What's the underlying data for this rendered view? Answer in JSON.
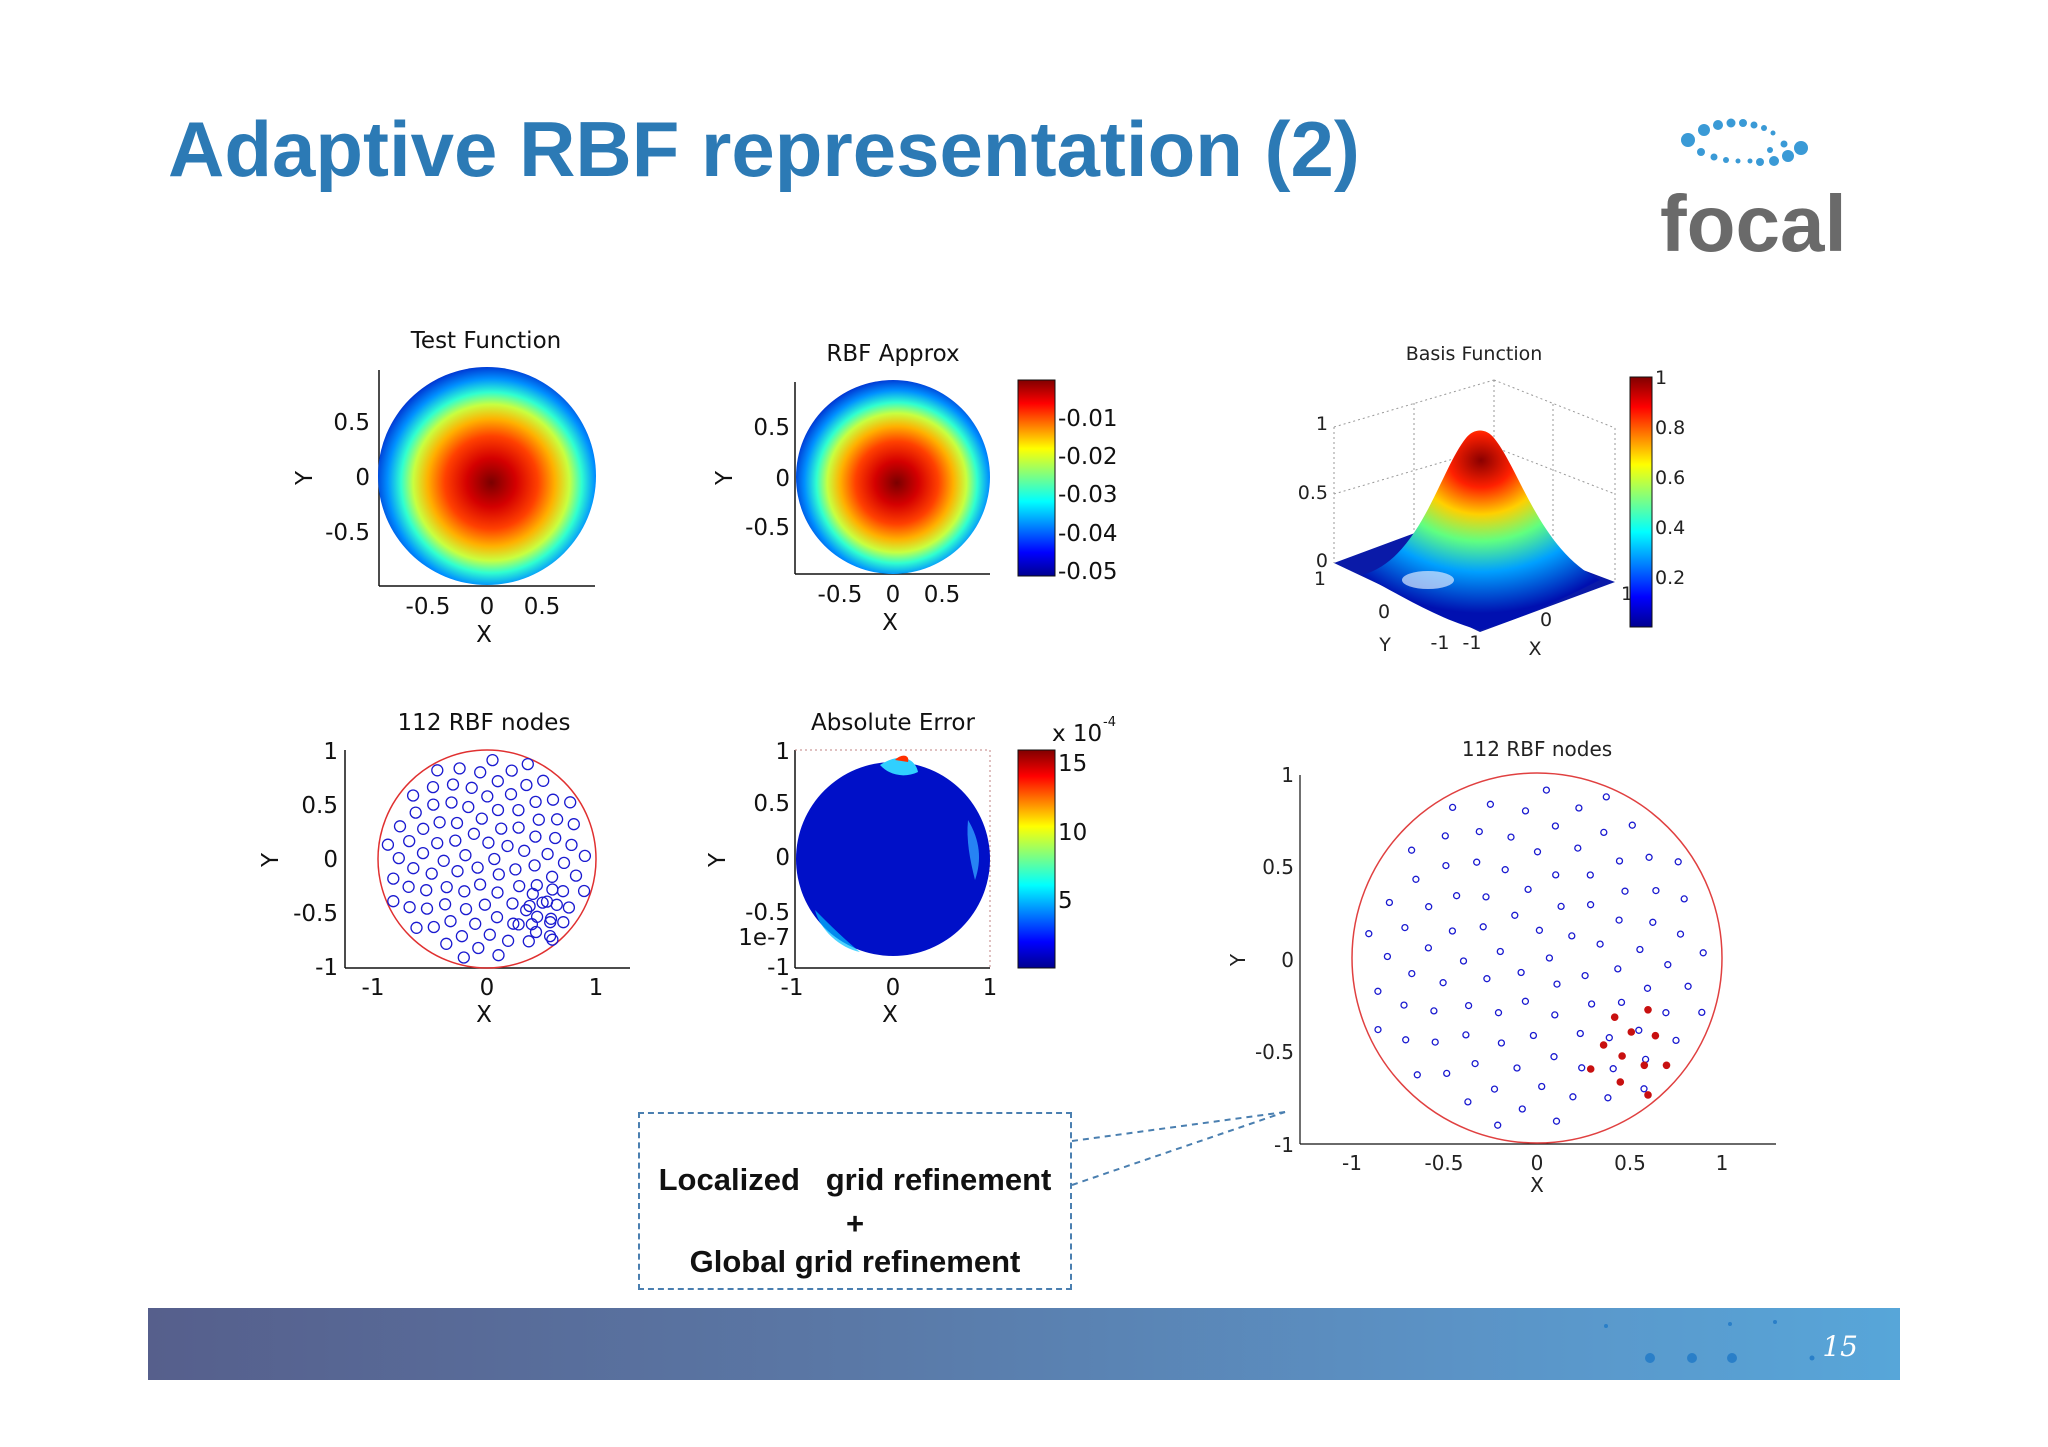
{
  "slide": {
    "title": "Adaptive RBF representation (2)",
    "logo_text": "focal",
    "page_number": "15"
  },
  "callout": {
    "line1": "Localized   grid refinement",
    "line2": "+",
    "line3": "Global grid refinement"
  },
  "colors": {
    "title": "#2c7ab5",
    "nodes": "#1a1ad0",
    "refined_nodes": "#c81010",
    "boundary": "#e03030",
    "footer_start": "#565f8c",
    "footer_end": "#57a6d9"
  },
  "chart_data": [
    {
      "type": "heatmap",
      "title": "Test Function",
      "xlabel": "X",
      "ylabel": "Y",
      "xticks": [
        "-0.5",
        "0",
        "0.5"
      ],
      "yticks": [
        "0.5",
        "0",
        "-0.5"
      ],
      "domain": "unit disk",
      "colormap": "jet"
    },
    {
      "type": "heatmap",
      "title": "RBF Approx",
      "xlabel": "X",
      "ylabel": "Y",
      "xticks": [
        "-0.5",
        "0",
        "0.5"
      ],
      "yticks": [
        "0.5",
        "0",
        "-0.5"
      ],
      "colorbar_ticks": [
        "-0.01",
        "-0.02",
        "-0.03",
        "-0.04",
        "-0.05"
      ],
      "colormap": "jet"
    },
    {
      "type": "surface",
      "title": "Basis Function",
      "xlabel": "X",
      "ylabel": "Y",
      "zticks": [
        "1",
        "0.5",
        "0"
      ],
      "x_ticks": [
        "-1",
        "0",
        "1"
      ],
      "y_ticks": [
        "1",
        "0",
        "-1"
      ],
      "colorbar_ticks": [
        "1",
        "0.8",
        "0.6",
        "0.4",
        "0.2"
      ],
      "colormap": "jet"
    },
    {
      "type": "scatter",
      "title": "112 RBF nodes",
      "xlabel": "X",
      "ylabel": "Y",
      "xticks": [
        "-1",
        "0",
        "1"
      ],
      "yticks": [
        "1",
        "0.5",
        "0",
        "-0.5",
        "-1"
      ],
      "xlim": [
        -1,
        1
      ],
      "ylim": [
        -1,
        1
      ],
      "node_count": 112,
      "marker": "circle"
    },
    {
      "type": "heatmap",
      "title": "Absolute Error",
      "xlabel": "X",
      "ylabel": "Y",
      "xticks": [
        "-1",
        "0",
        "1"
      ],
      "yticks": [
        "1",
        "0.5",
        "0",
        "-0.5",
        "-1"
      ],
      "extra_label": "1e-7",
      "colorbar_label": "x 10",
      "colorbar_exponent": "-4",
      "colorbar_ticks": [
        "15",
        "10",
        "5"
      ],
      "colormap": "jet"
    },
    {
      "type": "scatter",
      "title": "112 RBF nodes",
      "xlabel": "X",
      "ylabel": "Y",
      "xticks": [
        "-1",
        "-0.5",
        "0",
        "0.5",
        "1"
      ],
      "yticks": [
        "1",
        "0.5",
        "0",
        "-0.5",
        "-1"
      ],
      "xlim": [
        -1,
        1
      ],
      "ylim": [
        -1,
        1
      ],
      "refined_nodes": [
        [
          0.42,
          -0.32
        ],
        [
          0.6,
          -0.28
        ],
        [
          0.51,
          -0.4
        ],
        [
          0.64,
          -0.42
        ],
        [
          0.36,
          -0.47
        ],
        [
          0.46,
          -0.53
        ],
        [
          0.58,
          -0.58
        ],
        [
          0.7,
          -0.58
        ],
        [
          0.29,
          -0.6
        ],
        [
          0.45,
          -0.67
        ],
        [
          0.6,
          -0.74
        ]
      ]
    }
  ]
}
